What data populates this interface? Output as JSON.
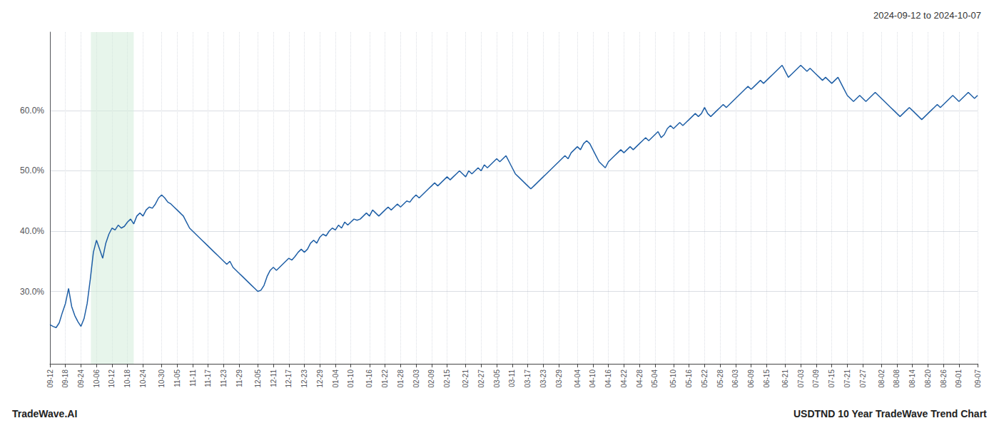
{
  "chart_data": {
    "type": "line",
    "title": "2024-09-12 to 2024-10-07",
    "annotations": [
      "TradeWave.AI",
      "USDTND 10 Year TradeWave Trend Chart"
    ],
    "color": "#1f5fa6",
    "shade_color": "#d4edda",
    "shaded_span": [
      13.2,
      27.0
    ],
    "ylim": [
      18,
      73
    ],
    "yticks": [
      {
        "value": 30.0,
        "label": "30.0%"
      },
      {
        "value": 40.0,
        "label": "40.0%"
      },
      {
        "value": 50.0,
        "label": "50.0%"
      },
      {
        "value": 60.0,
        "label": "60.0%"
      }
    ],
    "grid": true,
    "categories": [
      "09-12",
      null,
      null,
      null,
      null,
      "09-18",
      null,
      null,
      null,
      null,
      "09-24",
      null,
      null,
      null,
      null,
      "10-06",
      null,
      null,
      null,
      null,
      "10-12",
      null,
      null,
      null,
      null,
      "10-18",
      null,
      null,
      null,
      null,
      "10-24",
      null,
      null,
      null,
      null,
      null,
      "10-30",
      null,
      null,
      null,
      null,
      "11-05",
      null,
      null,
      null,
      null,
      "11-11",
      null,
      null,
      null,
      null,
      "11-17",
      null,
      null,
      null,
      null,
      "11-23",
      null,
      null,
      null,
      null,
      "11-29",
      null,
      null,
      null,
      null,
      null,
      "12-05",
      null,
      null,
      null,
      null,
      "12-11",
      null,
      null,
      null,
      null,
      "12-17",
      null,
      null,
      null,
      null,
      "12-23",
      null,
      null,
      null,
      null,
      "12-29",
      null,
      null,
      null,
      null,
      "01-04",
      null,
      null,
      null,
      null,
      "01-10",
      null,
      null,
      null,
      null,
      null,
      "01-16",
      null,
      null,
      null,
      null,
      "01-22",
      null,
      null,
      null,
      null,
      "01-28",
      null,
      null,
      null,
      null,
      "02-03",
      null,
      null,
      null,
      null,
      "02-09",
      null,
      null,
      null,
      null,
      "02-15",
      null,
      null,
      null,
      null,
      null,
      "02-21",
      null,
      null,
      null,
      null,
      "02-27",
      null,
      null,
      null,
      null,
      "03-05",
      null,
      null,
      null,
      null,
      "03-11",
      null,
      null,
      null,
      null,
      "03-17",
      null,
      null,
      null,
      null,
      "03-23",
      null,
      null,
      null,
      null,
      "03-29",
      null,
      null,
      null,
      null,
      null,
      "04-04",
      null,
      null,
      null,
      null,
      "04-10",
      null,
      null,
      null,
      null,
      "04-16",
      null,
      null,
      null,
      null,
      "04-22",
      null,
      null,
      null,
      null,
      "04-28",
      null,
      null,
      null,
      null,
      "05-04",
      null,
      null,
      null,
      null,
      null,
      "05-10",
      null,
      null,
      null,
      null,
      "05-16",
      null,
      null,
      null,
      null,
      "05-22",
      null,
      null,
      null,
      null,
      "05-28",
      null,
      null,
      null,
      null,
      "06-03",
      null,
      null,
      null,
      null,
      "06-09",
      null,
      null,
      null,
      null,
      "06-15",
      null,
      null,
      null,
      null,
      null,
      "06-21",
      null,
      null,
      null,
      null,
      "07-03",
      null,
      null,
      null,
      null,
      "07-09",
      null,
      null,
      null,
      null,
      "07-15",
      null,
      null,
      null,
      null,
      "07-21",
      null,
      null,
      null,
      null,
      "07-27",
      null,
      null,
      null,
      null,
      null,
      "08-02",
      null,
      null,
      null,
      null,
      "08-08",
      null,
      null,
      null,
      null,
      "08-14",
      null,
      null,
      null,
      null,
      "08-20",
      null,
      null,
      null,
      null,
      "08-26",
      null,
      null,
      null,
      null,
      "09-01",
      null,
      null,
      null,
      null,
      null,
      "09-07"
    ],
    "values": [
      24.5,
      24.2,
      24.0,
      24.8,
      26.5,
      28.0,
      30.5,
      27.5,
      26.0,
      25.0,
      24.2,
      25.5,
      28.0,
      32.0,
      36.5,
      38.5,
      37.0,
      35.5,
      38.0,
      39.5,
      40.5,
      40.2,
      41.0,
      40.5,
      40.8,
      41.5,
      42.0,
      41.2,
      42.5,
      43.0,
      42.5,
      43.5,
      44.0,
      43.8,
      44.5,
      45.5,
      46.0,
      45.5,
      44.8,
      44.5,
      44.0,
      43.5,
      43.0,
      42.5,
      41.5,
      40.5,
      40.0,
      39.5,
      39.0,
      38.5,
      38.0,
      37.5,
      37.0,
      36.5,
      36.0,
      35.5,
      35.0,
      34.5,
      35.0,
      34.0,
      33.5,
      33.0,
      32.5,
      32.0,
      31.5,
      31.0,
      30.5,
      30.0,
      30.2,
      31.0,
      32.5,
      33.5,
      34.0,
      33.5,
      34.0,
      34.5,
      35.0,
      35.5,
      35.2,
      35.8,
      36.5,
      37.0,
      36.5,
      37.0,
      38.0,
      38.5,
      38.0,
      39.0,
      39.5,
      39.2,
      40.0,
      40.5,
      40.2,
      41.0,
      40.5,
      41.5,
      41.0,
      41.5,
      42.0,
      41.8,
      42.0,
      42.5,
      43.0,
      42.5,
      43.5,
      43.0,
      42.5,
      43.0,
      43.5,
      44.0,
      43.5,
      44.0,
      44.5,
      44.0,
      44.5,
      45.0,
      44.8,
      45.5,
      46.0,
      45.5,
      46.0,
      46.5,
      47.0,
      47.5,
      48.0,
      47.5,
      48.0,
      48.5,
      49.0,
      48.5,
      49.0,
      49.5,
      50.0,
      49.5,
      49.0,
      50.0,
      49.5,
      50.0,
      50.5,
      50.0,
      51.0,
      50.5,
      51.0,
      51.5,
      52.0,
      51.5,
      52.0,
      52.5,
      51.5,
      50.5,
      49.5,
      49.0,
      48.5,
      48.0,
      47.5,
      47.0,
      47.5,
      48.0,
      48.5,
      49.0,
      49.5,
      50.0,
      50.5,
      51.0,
      51.5,
      52.0,
      52.5,
      52.0,
      53.0,
      53.5,
      54.0,
      53.5,
      54.5,
      55.0,
      54.5,
      53.5,
      52.5,
      51.5,
      51.0,
      50.5,
      51.5,
      52.0,
      52.5,
      53.0,
      53.5,
      53.0,
      53.5,
      54.0,
      53.5,
      54.0,
      54.5,
      55.0,
      55.5,
      55.0,
      55.5,
      56.0,
      56.5,
      55.5,
      56.0,
      57.0,
      57.5,
      57.0,
      57.5,
      58.0,
      57.5,
      58.0,
      58.5,
      59.0,
      59.5,
      59.0,
      59.5,
      60.5,
      59.5,
      59.0,
      59.5,
      60.0,
      60.5,
      61.0,
      60.5,
      61.0,
      61.5,
      62.0,
      62.5,
      63.0,
      63.5,
      64.0,
      63.5,
      64.0,
      64.5,
      65.0,
      64.5,
      65.0,
      65.5,
      66.0,
      66.5,
      67.0,
      67.5,
      66.5,
      65.5,
      66.0,
      66.5,
      67.0,
      67.5,
      67.0,
      66.5,
      67.0,
      66.5,
      66.0,
      65.5,
      65.0,
      65.5,
      65.0,
      64.5,
      65.0,
      65.5,
      64.5,
      63.5,
      62.5,
      62.0,
      61.5,
      62.0,
      62.5,
      62.0,
      61.5,
      62.0,
      62.5,
      63.0,
      62.5,
      62.0,
      61.5,
      61.0,
      60.5,
      60.0,
      59.5,
      59.0,
      59.5,
      60.0,
      60.5,
      60.0,
      59.5,
      59.0,
      58.5,
      59.0,
      59.5,
      60.0,
      60.5,
      61.0,
      60.5,
      61.0,
      61.5,
      62.0,
      62.5,
      62.0,
      61.5,
      62.0,
      62.5,
      63.0,
      62.5,
      62.0,
      62.5
    ]
  }
}
